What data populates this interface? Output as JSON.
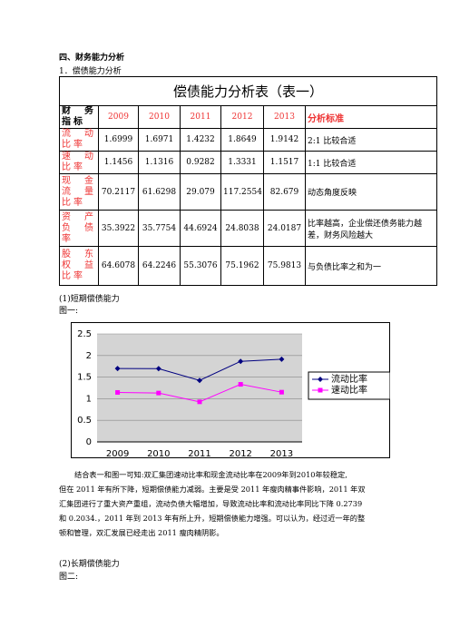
{
  "heading": "四、财务能力分析",
  "subheading": "1．偿债能力分析",
  "table": {
    "title": "偿债能力分析表（表一）",
    "header": [
      "财务指标",
      "2009",
      "2010",
      "2011",
      "2012",
      "2013",
      "分析标准"
    ],
    "rows": [
      [
        "流动比率",
        "1.6999",
        "1.6971",
        "1.4232",
        "1.8649",
        "1.9142",
        "2:1 比较合适"
      ],
      [
        "速动比率",
        "1.1456",
        "1.1316",
        "0.9282",
        "1.3331",
        "1.1517",
        "1:1 比较合适"
      ],
      [
        "现金流量比率",
        "70.2117",
        "61.6298",
        "29.079",
        "117.2554",
        "82.679",
        "动态角度反映"
      ],
      [
        "资产负债率",
        "35.3922",
        "35.7754",
        "44.6924",
        "24.8038",
        "24.0187",
        "比率越高，企业偿还债务能力越差，财务风险越大"
      ],
      [
        "股东权益比率",
        "64.6078",
        "64.2246",
        "55.3076",
        "75.1962",
        "75.9813",
        "与负债比率之和为一"
      ]
    ]
  },
  "section1": "(1)短期偿债能力",
  "figure1_label": "图一:",
  "chart_data": {
    "type": "line",
    "categories": [
      "2009",
      "2010",
      "2011",
      "2012",
      "2013"
    ],
    "series": [
      {
        "name": "流动比率",
        "color": "#000080",
        "values": [
          1.6999,
          1.6971,
          1.4232,
          1.8649,
          1.9142
        ]
      },
      {
        "name": "速动比率",
        "color": "#ff00ff",
        "values": [
          1.1456,
          1.1316,
          0.9282,
          1.3331,
          1.1517
        ]
      }
    ],
    "ylim": [
      0,
      2.5
    ],
    "yticks": [
      0,
      0.5,
      1,
      1.5,
      2,
      2.5
    ],
    "grid": true
  },
  "paragraph": [
    "结合表一和图一可知:双汇集团速动比率和现金流动比率在2009年到2010年较稳定,",
    "但在 2011 年有所下降，短期偿债能力减弱。主要是受 2011 年瘦肉精事件影响，2011 年双",
    "汇集团进行了重大资产重组，流动负债大幅增加，导致流动比率和流动比率同比下降 0.2739",
    "和 0.2034.，2011 年到 2013 年有所上升，短期偿债能力增强。可以认为，经过近一年的整",
    "顿和管理，双汇发展已经走出 2011 瘦肉精阴影。"
  ],
  "section2": "(2)长期偿债能力",
  "figure2_label": "图二:"
}
